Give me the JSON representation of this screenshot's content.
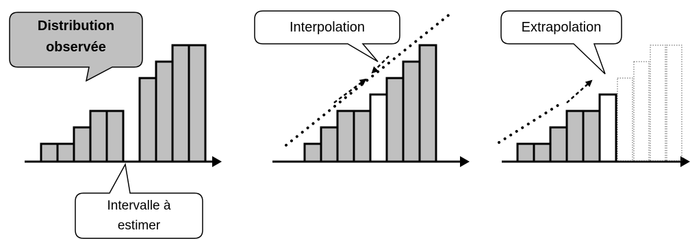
{
  "panel_observed": {
    "callout_title_line1": "Distribution",
    "callout_title_line2": "observée",
    "callout_gap_line1": "Intervalle à",
    "callout_gap_line2": "estimer"
  },
  "panel_interpolation": {
    "callout_label": "Interpolation"
  },
  "panel_extrapolation": {
    "callout_label": "Extrapolation"
  },
  "colors": {
    "bar_fill": "#c0c0c0",
    "stroke": "#000000",
    "callout_gray": "#c0c0c0",
    "background": "#ffffff"
  }
}
